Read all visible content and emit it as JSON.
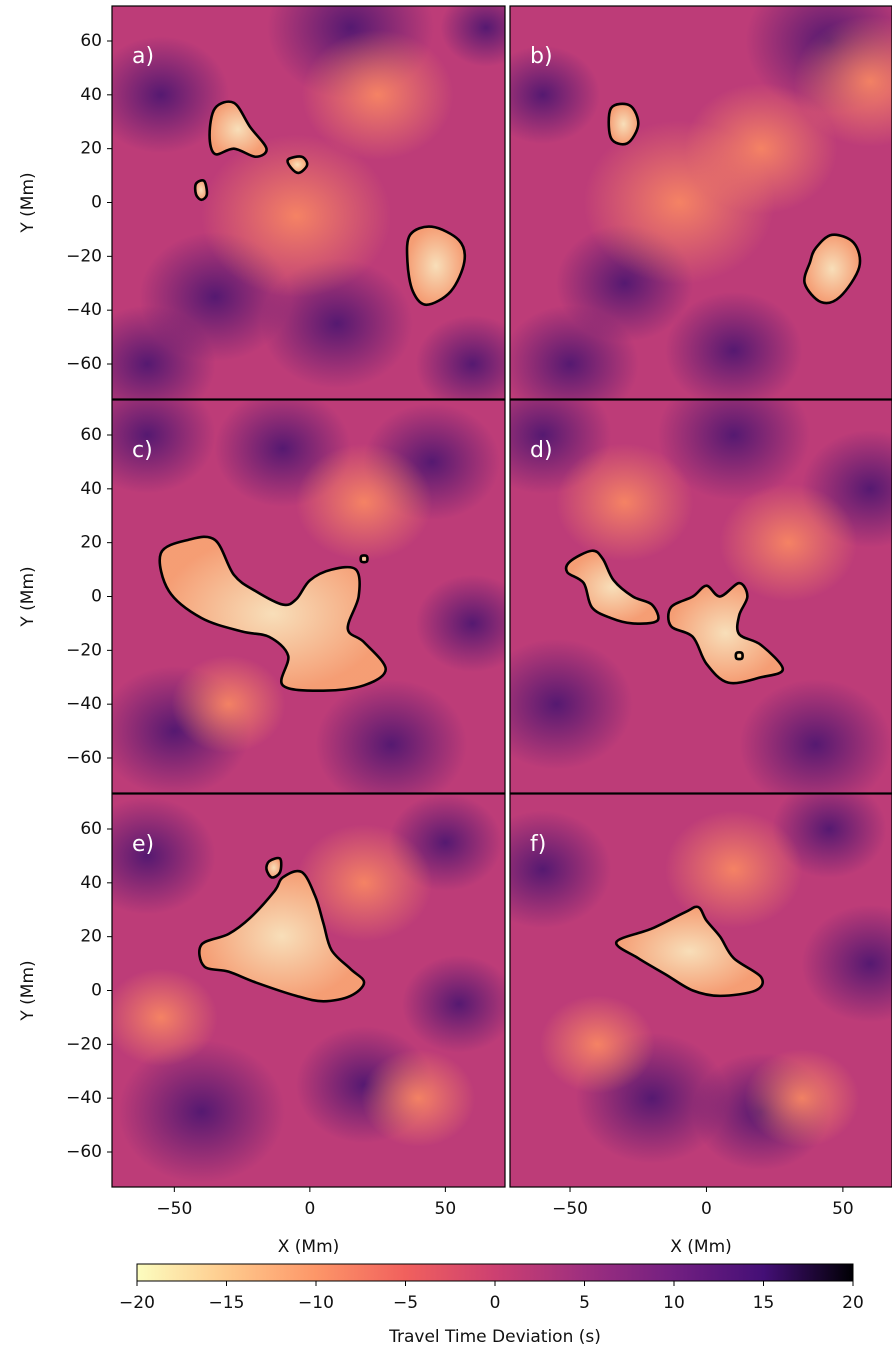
{
  "chart_data": [
    {
      "type": "heatmap",
      "panel_label": "a)",
      "xlim": [
        -73,
        72
      ],
      "ylim": [
        -73,
        73
      ],
      "ylabel": "Y (Mm)",
      "yticks": [
        60,
        40,
        20,
        0,
        {
          "value": -20,
          "label": "−20"
        },
        {
          "value": -40,
          "label": "−40"
        },
        {
          "value": -60,
          "label": "−60"
        }
      ]
    },
    {
      "type": "heatmap",
      "panel_label": "b)",
      "xlim": [
        -72,
        68
      ],
      "ylim": [
        -73,
        73
      ]
    },
    {
      "type": "heatmap",
      "panel_label": "c)",
      "xlim": [
        -73,
        72
      ],
      "ylim": [
        -73,
        73
      ],
      "ylabel": "Y (Mm)",
      "yticks": [
        60,
        40,
        20,
        0,
        {
          "value": -20,
          "label": "−20"
        },
        {
          "value": -40,
          "label": "−40"
        },
        {
          "value": -60,
          "label": "−60"
        }
      ]
    },
    {
      "type": "heatmap",
      "panel_label": "d)",
      "xlim": [
        -72,
        68
      ],
      "ylim": [
        -73,
        73
      ]
    },
    {
      "type": "heatmap",
      "panel_label": "e)",
      "xlim": [
        -73,
        72
      ],
      "ylim": [
        -73,
        73
      ],
      "ylabel": "Y (Mm)",
      "xlabel": "X (Mm)",
      "yticks": [
        60,
        40,
        20,
        0,
        {
          "value": -20,
          "label": "−20"
        },
        {
          "value": -40,
          "label": "−40"
        },
        {
          "value": -60,
          "label": "−60"
        }
      ],
      "xticks": [
        {
          "value": -50,
          "label": "−50"
        },
        0,
        50
      ]
    },
    {
      "type": "heatmap",
      "panel_label": "f)",
      "xlim": [
        -72,
        68
      ],
      "ylim": [
        -73,
        73
      ],
      "xlabel": "X (Mm)",
      "xticks": [
        {
          "value": -50,
          "label": "−50"
        },
        0,
        50
      ]
    },
    {
      "type": "colorbar",
      "colormap": "magma_r",
      "xlabel": "Travel Time Deviation (s)",
      "xlim": [
        -20,
        20
      ],
      "xticks": [
        {
          "value": -20,
          "label": "−20"
        },
        {
          "value": -15,
          "label": "−15"
        },
        {
          "value": -10,
          "label": "−10"
        },
        {
          "value": -5,
          "label": "−5"
        },
        0,
        5,
        10,
        15,
        20
      ]
    }
  ]
}
